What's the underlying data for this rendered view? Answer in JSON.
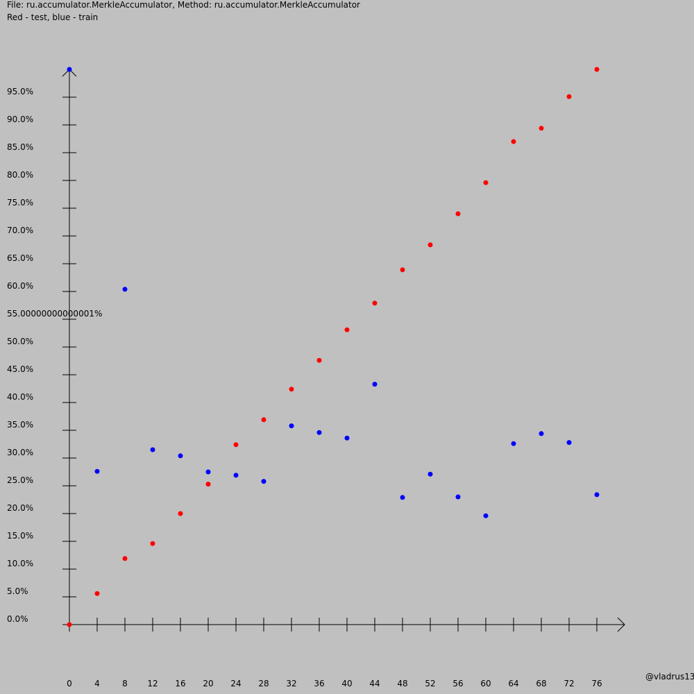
{
  "header": {
    "line1": "File: ru.accumulator.MerkleAccumulator, Method: ru.accumulator.MerkleAccumulator",
    "line2": "Red - test, blue - train"
  },
  "credit": "@vladrus13",
  "colors": {
    "background": "#c0c0c0",
    "test": "#ff0000",
    "train": "#0000ff",
    "axis": "#000000"
  },
  "chart_data": {
    "type": "scatter",
    "title": "File: ru.accumulator.MerkleAccumulator, Method: ru.accumulator.MerkleAccumulator",
    "subtitle": "Red - test, blue - train",
    "xlabel": "",
    "ylabel": "",
    "xlim": [
      0,
      80
    ],
    "ylim": [
      0,
      100
    ],
    "grid": false,
    "x_ticks": [
      0,
      4,
      8,
      12,
      16,
      20,
      24,
      28,
      32,
      36,
      40,
      44,
      48,
      52,
      56,
      60,
      64,
      68,
      72,
      76
    ],
    "x_tick_labels": [
      "0",
      "4",
      "8",
      "12",
      "16",
      "20",
      "24",
      "28",
      "32",
      "36",
      "40",
      "44",
      "48",
      "52",
      "56",
      "60",
      "64",
      "68",
      "72",
      "76"
    ],
    "y_ticks": [
      0,
      5,
      10,
      15,
      20,
      25,
      30,
      35,
      40,
      45,
      50,
      55,
      60,
      65,
      70,
      75,
      80,
      85,
      90,
      95
    ],
    "y_tick_labels": [
      "0.0%",
      "5.0%",
      "10.0%",
      "15.0%",
      "20.0%",
      "25.0%",
      "30.0%",
      "35.0%",
      "40.0%",
      "45.0%",
      "50.0%",
      "55.00000000000001%",
      "60.0%",
      "65.0%",
      "70.0%",
      "75.0%",
      "80.0%",
      "85.0%",
      "90.0%",
      "95.0%"
    ],
    "series": [
      {
        "name": "test",
        "color": "#ff0000",
        "x": [
          0,
          4,
          8,
          12,
          16,
          20,
          24,
          28,
          32,
          36,
          40,
          44,
          48,
          52,
          56,
          60,
          64,
          68,
          72,
          76
        ],
        "y": [
          0,
          5.6,
          11.9,
          14.6,
          20.0,
          25.3,
          32.4,
          36.9,
          42.4,
          47.6,
          53.1,
          57.9,
          63.9,
          68.4,
          74.0,
          79.6,
          87.0,
          89.4,
          95.1,
          100.0
        ]
      },
      {
        "name": "train",
        "color": "#0000ff",
        "x": [
          0,
          4,
          8,
          12,
          16,
          20,
          24,
          28,
          32,
          36,
          40,
          44,
          48,
          52,
          56,
          60,
          64,
          68,
          72,
          76
        ],
        "y": [
          100.0,
          27.6,
          60.4,
          31.5,
          30.4,
          27.5,
          26.9,
          25.8,
          35.8,
          34.6,
          33.6,
          43.3,
          22.9,
          27.1,
          23.0,
          19.6,
          32.6,
          34.4,
          32.8,
          23.4
        ]
      }
    ]
  }
}
